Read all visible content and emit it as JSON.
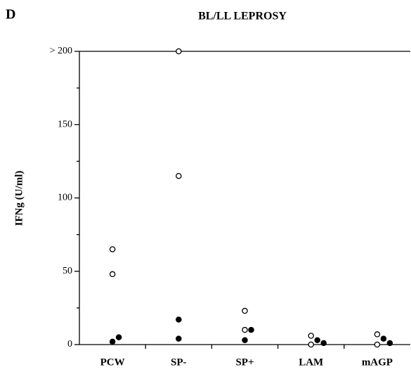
{
  "chart_data": {
    "type": "dotplot",
    "panel": "D",
    "title": "BL/LL LEPROSY",
    "y_label": "IFNg (U/ml)",
    "categories": [
      "PCW",
      "SP-",
      "SP+",
      "LAM",
      "mAGP"
    ],
    "series": [
      {
        "marker": "open",
        "color": "#000000",
        "values": [
          [
            65,
            48
          ],
          [
            200,
            115
          ],
          [
            23,
            10
          ],
          [
            6,
            0
          ],
          [
            7,
            0
          ]
        ]
      },
      {
        "marker": "filled",
        "color": "#000000",
        "values": [
          [
            2,
            5
          ],
          [
            17,
            4
          ],
          [
            10,
            3
          ],
          [
            3,
            1
          ],
          [
            4,
            1
          ]
        ]
      }
    ],
    "ylim": [
      0,
      200
    ],
    "yticks": [
      0,
      50,
      100,
      150,
      {
        "value": 200,
        "label": "> 200"
      }
    ],
    "minor_yticks": [
      25,
      75,
      125,
      175
    ]
  }
}
